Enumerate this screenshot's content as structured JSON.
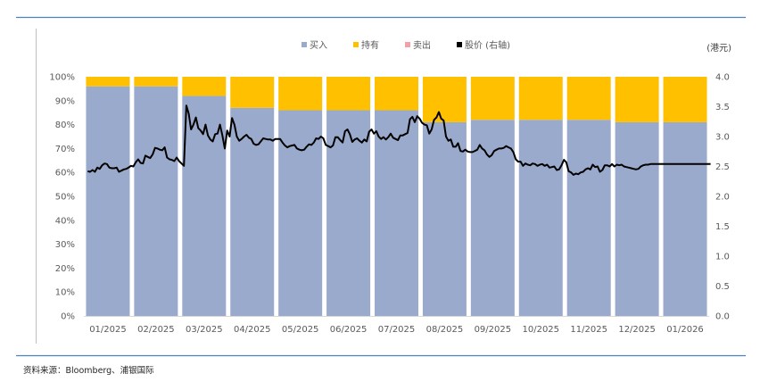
{
  "colors": {
    "buy": "#9aaacc",
    "hold": "#ffc000",
    "sell": "#f4a0a8",
    "price": "#000000",
    "frame": "#4f81bd"
  },
  "legend": [
    {
      "key": "buy",
      "label": "买入"
    },
    {
      "key": "hold",
      "label": "持有"
    },
    {
      "key": "sell",
      "label": "卖出"
    },
    {
      "key": "price",
      "label": "股价 (右轴)"
    }
  ],
  "unit_label": "(港元)",
  "source_text": "资料来源：Bloomberg、浦银国际",
  "chart_data": {
    "type": "bar",
    "stacked": true,
    "categories": [
      "01/2025",
      "02/2025",
      "03/2025",
      "04/2025",
      "05/2025",
      "06/2025",
      "07/2025",
      "08/2025",
      "09/2025",
      "10/2025",
      "11/2025",
      "12/2025",
      "01/2026"
    ],
    "series": [
      {
        "name": "买入",
        "values": [
          96,
          96,
          92,
          87,
          86,
          86,
          86,
          81,
          82,
          82,
          82,
          81,
          81
        ]
      },
      {
        "name": "持有",
        "values": [
          4,
          4,
          8,
          13,
          14,
          14,
          14,
          19,
          18,
          18,
          18,
          19,
          19
        ]
      },
      {
        "name": "卖出",
        "values": [
          0,
          0,
          0,
          0,
          0,
          0,
          0,
          0,
          0,
          0,
          0,
          0,
          0
        ]
      }
    ],
    "y_ticks": [
      "0%",
      "10%",
      "20%",
      "30%",
      "40%",
      "50%",
      "60%",
      "70%",
      "80%",
      "90%",
      "100%"
    ],
    "ylim": [
      0,
      100
    ],
    "y2_ticks": [
      "0.0",
      "0.5",
      "1.0",
      "1.5",
      "2.0",
      "2.5",
      "3.0",
      "3.5",
      "4.0"
    ],
    "y2lim": [
      0,
      4.0
    ],
    "price_line": {
      "name": "股价 (右轴)",
      "x": [
        0.0,
        0.05,
        0.1,
        0.15,
        0.2,
        0.25,
        0.3,
        0.35,
        0.4,
        0.45,
        0.5,
        0.55,
        0.6,
        0.65,
        0.7,
        0.75,
        0.8,
        0.85,
        0.9,
        0.95,
        1.0,
        1.05,
        1.1,
        1.15,
        1.2,
        1.25,
        1.3,
        1.35,
        1.4,
        1.45,
        1.5,
        1.55,
        1.6,
        1.65,
        1.7,
        1.75,
        1.8,
        1.85,
        1.9,
        1.95,
        2.0,
        2.05,
        2.1,
        2.15,
        2.2,
        2.25,
        2.3,
        2.35,
        2.4,
        2.45,
        2.5,
        2.55,
        2.6,
        2.65,
        2.7,
        2.75,
        2.8,
        2.85,
        2.9,
        2.95,
        3.0,
        3.05,
        3.1,
        3.15,
        3.2,
        3.25,
        3.3,
        3.35,
        3.4,
        3.45,
        3.5,
        3.55,
        3.6,
        3.65,
        3.7,
        3.75,
        3.8,
        3.85,
        3.9,
        3.95,
        4.0,
        4.05,
        4.1,
        4.15,
        4.2,
        4.25,
        4.3,
        4.35,
        4.4,
        4.45,
        4.5,
        4.55,
        4.6,
        4.65,
        4.7,
        4.75,
        4.8,
        4.85,
        4.9,
        4.95,
        5.0,
        5.05,
        5.1,
        5.15,
        5.2,
        5.25,
        5.3,
        5.35,
        5.4,
        5.45,
        5.5,
        5.55,
        5.6,
        5.65,
        5.7,
        5.75,
        5.8,
        5.85,
        5.9,
        5.95,
        6.0,
        6.05,
        6.1,
        6.15,
        6.2,
        6.25,
        6.3,
        6.35,
        6.4,
        6.45,
        6.5,
        6.55,
        6.6,
        6.65,
        6.7,
        6.75,
        6.8,
        6.85,
        6.9,
        6.95,
        7.0,
        7.05,
        7.1,
        7.15,
        7.2,
        7.25,
        7.3,
        7.35,
        7.4,
        7.45,
        7.5,
        7.55,
        7.6,
        7.65,
        7.7,
        7.75,
        7.8,
        7.85,
        7.9,
        7.95,
        8.0,
        8.05,
        8.1,
        8.15,
        8.2,
        8.25,
        8.3,
        8.35,
        8.4,
        8.45,
        8.5,
        8.55,
        8.6,
        8.65,
        8.7,
        8.75,
        8.8,
        8.85,
        8.9,
        8.95,
        9.0,
        9.05,
        9.1,
        9.15,
        9.2,
        9.25,
        9.3,
        9.35,
        9.4,
        9.45,
        9.5,
        9.55,
        9.6,
        9.65,
        9.7,
        9.75,
        9.8,
        9.85,
        9.9,
        9.95,
        10.0,
        10.05,
        10.1,
        10.15,
        10.2,
        10.25,
        10.3,
        10.35,
        10.4,
        10.45,
        10.5,
        10.55,
        10.6,
        10.65,
        10.7,
        10.75,
        10.8,
        10.85,
        10.9,
        10.95,
        11.0,
        11.05,
        11.1,
        11.15,
        11.2,
        11.25,
        11.3,
        11.35,
        11.4,
        11.45,
        11.5,
        11.55,
        11.6,
        11.65,
        11.7,
        11.75,
        11.8,
        11.85,
        11.9,
        11.95,
        12.0,
        12.05,
        12.1,
        12.15,
        12.2,
        12.25,
        12.3,
        12.35,
        12.4,
        12.45,
        12.5,
        12.55,
        12.6,
        12.65,
        12.7,
        12.75,
        12.8,
        12.85,
        12.9,
        12.95
      ],
      "values": [
        2.42,
        2.41,
        2.44,
        2.41,
        2.48,
        2.46,
        2.52,
        2.55,
        2.54,
        2.48,
        2.47,
        2.47,
        2.48,
        2.41,
        2.43,
        2.45,
        2.46,
        2.48,
        2.51,
        2.5,
        2.57,
        2.62,
        2.56,
        2.55,
        2.68,
        2.66,
        2.64,
        2.7,
        2.81,
        2.8,
        2.78,
        2.77,
        2.82,
        2.65,
        2.62,
        2.61,
        2.59,
        2.65,
        2.59,
        2.55,
        2.51,
        3.52,
        3.38,
        3.12,
        3.2,
        3.32,
        3.14,
        3.1,
        3.04,
        3.2,
        3.02,
        2.95,
        2.92,
        3.04,
        3.05,
        3.2,
        3.02,
        2.8,
        3.1,
        3.0,
        3.31,
        3.2,
        3.0,
        2.93,
        2.96,
        3.0,
        3.03,
        2.98,
        2.96,
        2.88,
        2.86,
        2.87,
        2.92,
        2.97,
        2.96,
        2.95,
        2.95,
        2.93,
        2.96,
        2.96,
        2.96,
        2.9,
        2.85,
        2.82,
        2.84,
        2.85,
        2.86,
        2.8,
        2.78,
        2.77,
        2.78,
        2.83,
        2.87,
        2.86,
        2.9,
        2.97,
        2.96,
        3.0,
        2.97,
        2.86,
        2.84,
        2.82,
        2.85,
        2.99,
        2.99,
        2.94,
        2.9,
        3.09,
        3.12,
        3.04,
        2.91,
        2.95,
        2.97,
        2.93,
        2.9,
        2.95,
        2.92,
        3.08,
        3.12,
        3.05,
        3.09,
        3.0,
        2.96,
        2.99,
        2.95,
        2.99,
        3.05,
        2.98,
        2.96,
        2.94,
        3.02,
        3.02,
        3.04,
        3.06,
        3.29,
        3.33,
        3.24,
        3.34,
        3.3,
        3.23,
        3.2,
        3.19,
        3.05,
        3.12,
        3.28,
        3.32,
        3.41,
        3.3,
        3.27,
        3.0,
        2.93,
        2.95,
        2.83,
        2.83,
        2.89,
        2.76,
        2.75,
        2.78,
        2.75,
        2.74,
        2.74,
        2.76,
        2.78,
        2.86,
        2.8,
        2.77,
        2.7,
        2.66,
        2.69,
        2.76,
        2.78,
        2.8,
        2.8,
        2.81,
        2.84,
        2.82,
        2.8,
        2.74,
        2.62,
        2.58,
        2.58,
        2.51,
        2.55,
        2.53,
        2.52,
        2.55,
        2.54,
        2.51,
        2.53,
        2.54,
        2.51,
        2.53,
        2.48,
        2.49,
        2.5,
        2.44,
        2.45,
        2.52,
        2.61,
        2.57,
        2.42,
        2.4,
        2.36,
        2.38,
        2.37,
        2.4,
        2.41,
        2.45,
        2.47,
        2.45,
        2.53,
        2.49,
        2.5,
        2.41,
        2.44,
        2.52,
        2.52,
        2.5,
        2.54,
        2.5,
        2.53,
        2.52,
        2.53,
        2.5,
        2.49,
        2.48,
        2.47,
        2.46,
        2.45,
        2.46,
        2.5,
        2.52,
        2.53,
        2.53,
        2.54,
        2.54,
        2.54,
        2.54,
        2.54,
        2.54,
        2.54,
        2.54,
        2.54,
        2.54,
        2.54,
        2.54,
        2.54,
        2.54,
        2.54,
        2.54,
        2.54,
        2.54,
        2.54,
        2.54,
        2.54,
        2.54,
        2.54,
        2.54,
        2.54,
        2.54
      ]
    }
  }
}
